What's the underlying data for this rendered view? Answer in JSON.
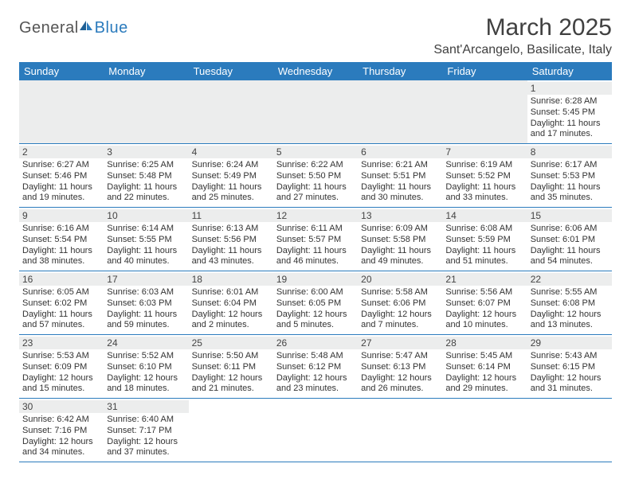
{
  "brand": {
    "part1": "General",
    "part2": "Blue"
  },
  "title": "March 2025",
  "location": "Sant'Arcangelo, Basilicate, Italy",
  "day_names": [
    "Sunday",
    "Monday",
    "Tuesday",
    "Wednesday",
    "Thursday",
    "Friday",
    "Saturday"
  ],
  "colors": {
    "accent": "#2b7bbd",
    "stripe": "#eceded"
  },
  "weeks": [
    [
      null,
      null,
      null,
      null,
      null,
      null,
      {
        "n": 1,
        "sr": "6:28 AM",
        "ss": "5:45 PM",
        "dl": "11 hours and 17 minutes."
      }
    ],
    [
      {
        "n": 2,
        "sr": "6:27 AM",
        "ss": "5:46 PM",
        "dl": "11 hours and 19 minutes."
      },
      {
        "n": 3,
        "sr": "6:25 AM",
        "ss": "5:48 PM",
        "dl": "11 hours and 22 minutes."
      },
      {
        "n": 4,
        "sr": "6:24 AM",
        "ss": "5:49 PM",
        "dl": "11 hours and 25 minutes."
      },
      {
        "n": 5,
        "sr": "6:22 AM",
        "ss": "5:50 PM",
        "dl": "11 hours and 27 minutes."
      },
      {
        "n": 6,
        "sr": "6:21 AM",
        "ss": "5:51 PM",
        "dl": "11 hours and 30 minutes."
      },
      {
        "n": 7,
        "sr": "6:19 AM",
        "ss": "5:52 PM",
        "dl": "11 hours and 33 minutes."
      },
      {
        "n": 8,
        "sr": "6:17 AM",
        "ss": "5:53 PM",
        "dl": "11 hours and 35 minutes."
      }
    ],
    [
      {
        "n": 9,
        "sr": "6:16 AM",
        "ss": "5:54 PM",
        "dl": "11 hours and 38 minutes."
      },
      {
        "n": 10,
        "sr": "6:14 AM",
        "ss": "5:55 PM",
        "dl": "11 hours and 40 minutes."
      },
      {
        "n": 11,
        "sr": "6:13 AM",
        "ss": "5:56 PM",
        "dl": "11 hours and 43 minutes."
      },
      {
        "n": 12,
        "sr": "6:11 AM",
        "ss": "5:57 PM",
        "dl": "11 hours and 46 minutes."
      },
      {
        "n": 13,
        "sr": "6:09 AM",
        "ss": "5:58 PM",
        "dl": "11 hours and 49 minutes."
      },
      {
        "n": 14,
        "sr": "6:08 AM",
        "ss": "5:59 PM",
        "dl": "11 hours and 51 minutes."
      },
      {
        "n": 15,
        "sr": "6:06 AM",
        "ss": "6:01 PM",
        "dl": "11 hours and 54 minutes."
      }
    ],
    [
      {
        "n": 16,
        "sr": "6:05 AM",
        "ss": "6:02 PM",
        "dl": "11 hours and 57 minutes."
      },
      {
        "n": 17,
        "sr": "6:03 AM",
        "ss": "6:03 PM",
        "dl": "11 hours and 59 minutes."
      },
      {
        "n": 18,
        "sr": "6:01 AM",
        "ss": "6:04 PM",
        "dl": "12 hours and 2 minutes."
      },
      {
        "n": 19,
        "sr": "6:00 AM",
        "ss": "6:05 PM",
        "dl": "12 hours and 5 minutes."
      },
      {
        "n": 20,
        "sr": "5:58 AM",
        "ss": "6:06 PM",
        "dl": "12 hours and 7 minutes."
      },
      {
        "n": 21,
        "sr": "5:56 AM",
        "ss": "6:07 PM",
        "dl": "12 hours and 10 minutes."
      },
      {
        "n": 22,
        "sr": "5:55 AM",
        "ss": "6:08 PM",
        "dl": "12 hours and 13 minutes."
      }
    ],
    [
      {
        "n": 23,
        "sr": "5:53 AM",
        "ss": "6:09 PM",
        "dl": "12 hours and 15 minutes."
      },
      {
        "n": 24,
        "sr": "5:52 AM",
        "ss": "6:10 PM",
        "dl": "12 hours and 18 minutes."
      },
      {
        "n": 25,
        "sr": "5:50 AM",
        "ss": "6:11 PM",
        "dl": "12 hours and 21 minutes."
      },
      {
        "n": 26,
        "sr": "5:48 AM",
        "ss": "6:12 PM",
        "dl": "12 hours and 23 minutes."
      },
      {
        "n": 27,
        "sr": "5:47 AM",
        "ss": "6:13 PM",
        "dl": "12 hours and 26 minutes."
      },
      {
        "n": 28,
        "sr": "5:45 AM",
        "ss": "6:14 PM",
        "dl": "12 hours and 29 minutes."
      },
      {
        "n": 29,
        "sr": "5:43 AM",
        "ss": "6:15 PM",
        "dl": "12 hours and 31 minutes."
      }
    ],
    [
      {
        "n": 30,
        "sr": "6:42 AM",
        "ss": "7:16 PM",
        "dl": "12 hours and 34 minutes."
      },
      {
        "n": 31,
        "sr": "6:40 AM",
        "ss": "7:17 PM",
        "dl": "12 hours and 37 minutes."
      },
      null,
      null,
      null,
      null,
      null
    ]
  ],
  "labels": {
    "sunrise": "Sunrise:",
    "sunset": "Sunset:",
    "daylight": "Daylight:"
  }
}
